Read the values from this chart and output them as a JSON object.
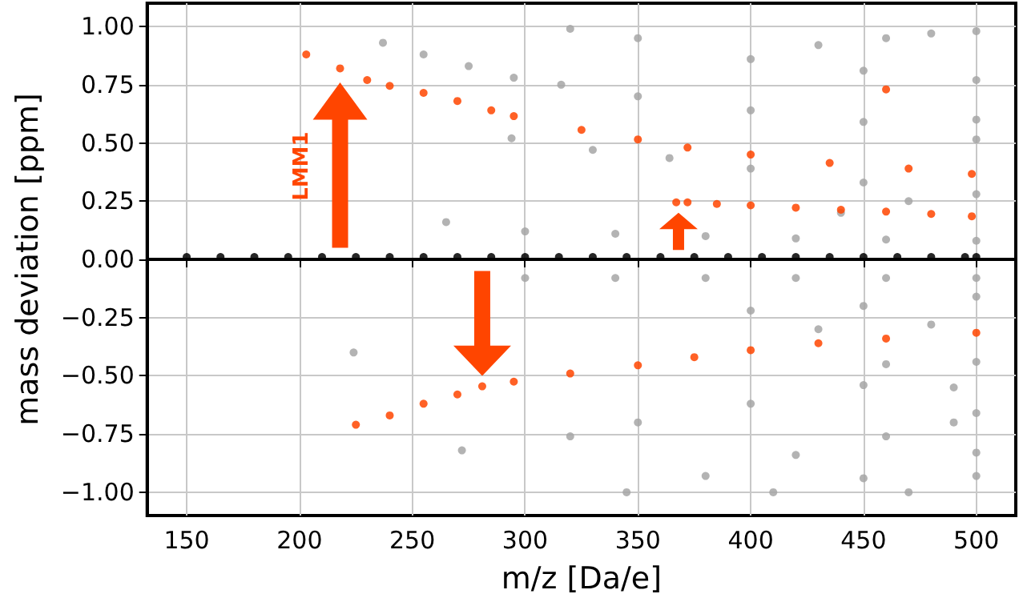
{
  "chart_data": {
    "type": "scatter",
    "xlabel": "m/z [Da/e]",
    "ylabel": "mass deviation [ppm]",
    "xlim": [
      132.5,
      517.5
    ],
    "ylim": [
      -1.1,
      1.1
    ],
    "xticks": [
      150,
      200,
      250,
      300,
      350,
      400,
      450,
      500
    ],
    "yticks": [
      {
        "value": -1,
        "label": "−1.00"
      },
      {
        "value": -0.75,
        "label": "−0.75"
      },
      {
        "value": -0.5,
        "label": "−0.50"
      },
      {
        "value": -0.25,
        "label": "−0.25"
      },
      {
        "value": 0,
        "label": "0.00"
      },
      {
        "value": 0.25,
        "label": "0.25"
      },
      {
        "value": 0.5,
        "label": "0.50"
      },
      {
        "value": 0.75,
        "label": "0.75"
      },
      {
        "value": 1,
        "label": "1.00"
      }
    ],
    "grid": true,
    "marker": "circle",
    "annotations": [
      "LMM1"
    ],
    "series": [
      {
        "color": "#a6a6a6",
        "x": [
          237,
          255,
          275,
          295,
          316,
          350,
          400,
          450,
          500,
          320,
          350,
          400,
          450,
          500,
          294,
          330,
          364,
          400,
          450,
          500,
          300,
          340,
          380,
          420,
          460,
          500,
          300,
          340,
          380,
          420,
          460,
          500,
          320,
          350,
          400,
          450,
          500,
          345,
          380,
          420,
          460,
          500,
          410,
          450,
          500,
          470,
          500,
          400,
          450,
          500,
          224,
          272,
          265,
          430,
          460,
          480,
          500,
          440,
          470,
          500,
          480,
          490,
          430,
          460,
          490
        ],
        "values": [
          0.93,
          0.88,
          0.83,
          0.78,
          0.75,
          0.7,
          0.64,
          0.59,
          0.515,
          0.99,
          0.95,
          0.86,
          0.81,
          0.77,
          0.52,
          0.47,
          0.435,
          0.39,
          0.33,
          0.28,
          0.12,
          0.11,
          0.1,
          0.09,
          0.085,
          0.08,
          -0.08,
          -0.08,
          -0.08,
          -0.08,
          -0.08,
          -0.08,
          -0.76,
          -0.7,
          -0.62,
          -0.54,
          -0.44,
          -1.0,
          -0.93,
          -0.84,
          -0.76,
          -0.66,
          -1.0,
          -0.94,
          -0.83,
          -1.0,
          -0.93,
          -0.22,
          -0.2,
          -0.16,
          -0.4,
          -0.82,
          0.16,
          0.92,
          0.95,
          0.97,
          0.98,
          0.2,
          0.25,
          0.6,
          -0.28,
          -0.55,
          -0.3,
          -0.45,
          -0.7
        ]
      },
      {
        "color": "#000000",
        "x": [
          150,
          165,
          180,
          195,
          210,
          225,
          240,
          255,
          270,
          285,
          300,
          315,
          330,
          345,
          360,
          375,
          390,
          405,
          420,
          435,
          450,
          465,
          480,
          495,
          500
        ],
        "values": [
          0.01,
          0.01,
          0.01,
          0.01,
          0.01,
          0.01,
          0.01,
          0.01,
          0.01,
          0.01,
          0.01,
          0.01,
          0.01,
          0.01,
          0.01,
          0.01,
          0.01,
          0.01,
          0.01,
          0.01,
          0.01,
          0.01,
          0.01,
          0.01,
          0.01
        ]
      },
      {
        "color": "#ff4500",
        "x": [
          203,
          218,
          230,
          240,
          255,
          270,
          285,
          295,
          325,
          350,
          372,
          400,
          435,
          470,
          498,
          460,
          367,
          372,
          385,
          400,
          420,
          440,
          460,
          480,
          498,
          225,
          240,
          255,
          270,
          281,
          295,
          320,
          350,
          375,
          400,
          430,
          460,
          500
        ],
        "values": [
          0.88,
          0.82,
          0.77,
          0.745,
          0.715,
          0.68,
          0.64,
          0.615,
          0.556,
          0.515,
          0.48,
          0.45,
          0.414,
          0.39,
          0.367,
          0.73,
          0.245,
          0.245,
          0.238,
          0.232,
          0.222,
          0.213,
          0.205,
          0.195,
          0.185,
          -0.71,
          -0.67,
          -0.62,
          -0.58,
          -0.545,
          -0.525,
          -0.49,
          -0.455,
          -0.42,
          -0.39,
          -0.36,
          -0.34,
          -0.315
        ]
      }
    ]
  }
}
